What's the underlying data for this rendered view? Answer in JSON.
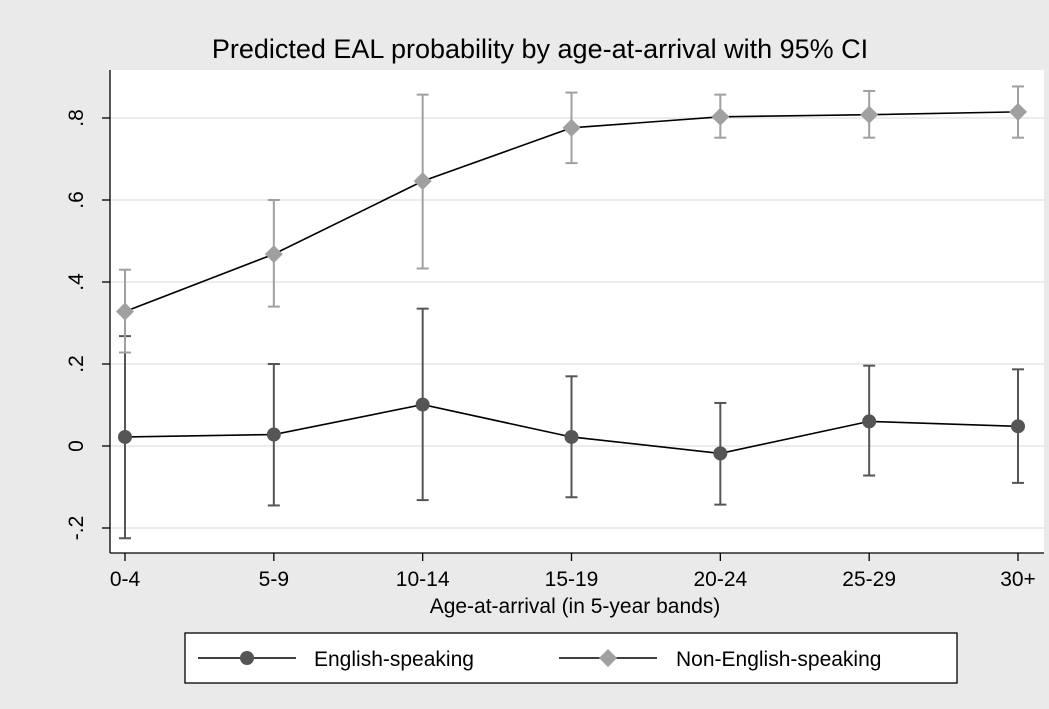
{
  "chart_data": {
    "type": "line",
    "title": "Predicted EAL probability by age-at-arrival with 95% CI",
    "xlabel": "Age-at-arrival (in 5-year bands)",
    "ylabel": "",
    "categories": [
      "0-4",
      "5-9",
      "10-14",
      "15-19",
      "20-24",
      "25-29",
      "30+"
    ],
    "y_ticks": [
      -0.2,
      0,
      0.2,
      0.4,
      0.6,
      0.8
    ],
    "y_tick_labels": [
      "-.2",
      "0",
      ".2",
      ".4",
      ".6",
      ".8"
    ],
    "ylim": [
      -0.26,
      0.92
    ],
    "grid": true,
    "legend_position": "bottom",
    "series": [
      {
        "name": "English-speaking",
        "marker": "circle",
        "color": "#555555",
        "ci_color": "#555555",
        "values": [
          0.022,
          0.028,
          0.101,
          0.022,
          -0.018,
          0.06,
          0.048
        ],
        "ci_low": [
          -0.225,
          -0.145,
          -0.132,
          -0.125,
          -0.143,
          -0.072,
          -0.09
        ],
        "ci_high": [
          0.268,
          0.2,
          0.335,
          0.17,
          0.105,
          0.196,
          0.187
        ]
      },
      {
        "name": "Non-English-speaking",
        "marker": "diamond",
        "color": "#a0a0a0",
        "ci_color": "#a0a0a0",
        "values": [
          0.328,
          0.468,
          0.646,
          0.776,
          0.803,
          0.808,
          0.815
        ],
        "ci_low": [
          0.228,
          0.34,
          0.433,
          0.69,
          0.752,
          0.752,
          0.752
        ],
        "ci_high": [
          0.43,
          0.6,
          0.857,
          0.862,
          0.857,
          0.866,
          0.877
        ]
      }
    ]
  }
}
